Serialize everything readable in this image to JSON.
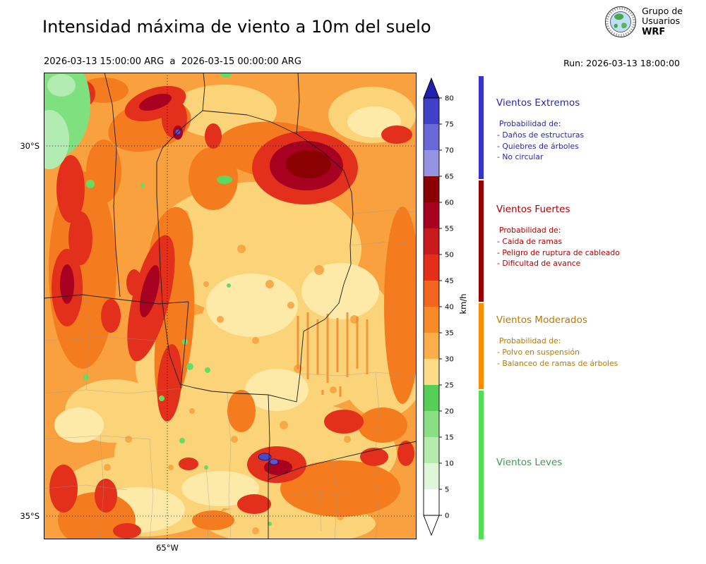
{
  "header": {
    "title": "Intensidad máxima de viento a 10m del suelo",
    "date_range": "2026-03-13 15:00:00 ARG  a  2026-03-15 00:00:00 ARG",
    "run_label": "Run: 2026-03-13 18:00:00",
    "logo": {
      "line1": "Grupo de",
      "line2": "Usuarios",
      "line3": "WRF"
    }
  },
  "map": {
    "lat_top_label": "30°S",
    "lat_bottom_label": "35°S",
    "lon_label": "65°W"
  },
  "colorbar": {
    "unit": "km/h",
    "ticks_top_to_bottom": [
      "80",
      "75",
      "70",
      "65",
      "60",
      "55",
      "50",
      "45",
      "40",
      "35",
      "30",
      "25",
      "20",
      "15",
      "10",
      "5",
      "0"
    ],
    "segment_colors_top_to_bottom": [
      "#4040c8",
      "#6868d8",
      "#9494e2",
      "#8b0000",
      "#a80020",
      "#c81a1c",
      "#e52e1a",
      "#f4661e",
      "#f88a28",
      "#fbae49",
      "#fcdc86",
      "#57cf57",
      "#8adf84",
      "#b5ebac",
      "#dff6d8",
      "#ffffff"
    ],
    "arrow_top_color": "#2020b0",
    "arrow_bottom_color": "#ffffff"
  },
  "legend": {
    "sections": [
      {
        "title": "Vientos Extremos",
        "text_color": "#2727b0",
        "bar_color": "#3535cc",
        "prob_header": "Probabilidad de:",
        "items": [
          "- Daños de estructuras",
          "- Quiebres de árboles",
          "- No circular"
        ]
      },
      {
        "title": "Vientos Fuertes",
        "text_color": "#b00000",
        "bar_color": "#990000",
        "prob_header": "Probabilidad de:",
        "items": [
          "- Caida de ramas",
          "- Peligro de ruptura de cableado",
          "- Dificultad de avance"
        ]
      },
      {
        "title": "Vientos Moderados",
        "text_color": "#b87a00",
        "bar_color": "#ff8c00",
        "prob_header": "Probabilidad de:",
        "items": [
          "- Polvo en suspensión",
          "- Balanceo de ramas de árboles"
        ]
      },
      {
        "title": "Vientos Leves",
        "text_color": "#3d9a50",
        "bar_color": "#55dd55",
        "prob_header": "",
        "items": []
      }
    ]
  }
}
